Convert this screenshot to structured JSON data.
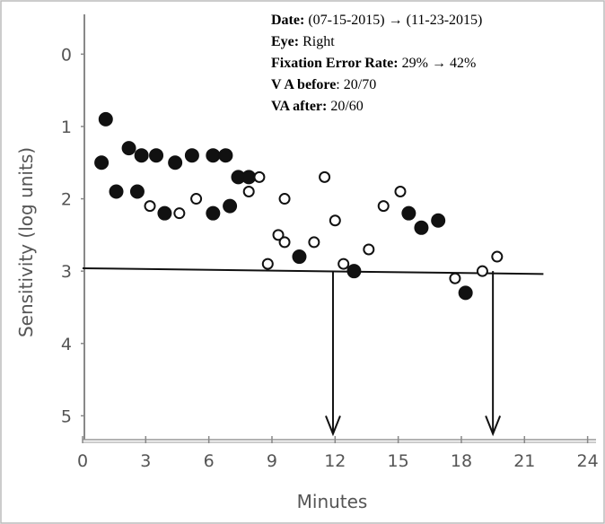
{
  "chart_data": {
    "type": "scatter",
    "x_label": "Minutes",
    "y_label": "Sensitivity (log units)",
    "xlim": [
      0,
      24.4
    ],
    "ylim": [
      -0.55,
      5.33
    ],
    "y_inverted": true,
    "xticks": [
      0,
      3,
      6,
      9,
      12,
      15,
      18,
      21,
      24
    ],
    "yticks": [
      0,
      1,
      2,
      3,
      4,
      5
    ],
    "series": [
      {
        "color": "#111111",
        "filled": true,
        "x": [
          0.9,
          1.1,
          1.6,
          2.2,
          2.6,
          2.8,
          3.5,
          3.9,
          4.4,
          5.2,
          6.2,
          6.2,
          6.8,
          7.0,
          7.4,
          7.9,
          10.3,
          12.9,
          15.5,
          16.1,
          16.9,
          18.2
        ],
        "values": [
          1.5,
          0.9,
          1.9,
          1.3,
          1.9,
          1.4,
          1.4,
          2.2,
          1.5,
          1.4,
          1.4,
          2.2,
          1.4,
          2.1,
          1.7,
          1.7,
          2.8,
          3.0,
          2.2,
          2.4,
          2.3,
          3.3
        ]
      },
      {
        "color": "#111111",
        "filled": false,
        "x": [
          3.2,
          4.6,
          5.4,
          7.9,
          8.4,
          8.8,
          9.3,
          9.6,
          9.6,
          11.0,
          11.5,
          12.0,
          12.4,
          13.6,
          14.3,
          15.1,
          17.7,
          19.0,
          19.7
        ],
        "values": [
          2.1,
          2.2,
          2.0,
          1.9,
          1.7,
          2.9,
          2.5,
          2.6,
          2.0,
          2.6,
          1.7,
          2.3,
          2.9,
          2.7,
          2.1,
          1.9,
          3.1,
          3.0,
          2.8
        ]
      }
    ],
    "reference_line": {
      "x": [
        0,
        21.9
      ],
      "y": [
        2.96,
        3.04
      ]
    },
    "arrows": [
      {
        "x": 11.9,
        "y": [
          3.0,
          5.25
        ]
      },
      {
        "x": 19.5,
        "y": [
          3.0,
          5.25
        ]
      }
    ],
    "annotations": [
      {
        "label": "Date:",
        "text": " (07-15-2015) → (11-23-2015)"
      },
      {
        "label": "Eye:",
        "text": " Right"
      },
      {
        "label": "Fixation Error Rate:",
        "text": " 29% → 42%"
      },
      {
        "label": "V A before",
        "text": ": 20/70"
      },
      {
        "label": "VA after:",
        "text": " 20/60"
      }
    ]
  }
}
